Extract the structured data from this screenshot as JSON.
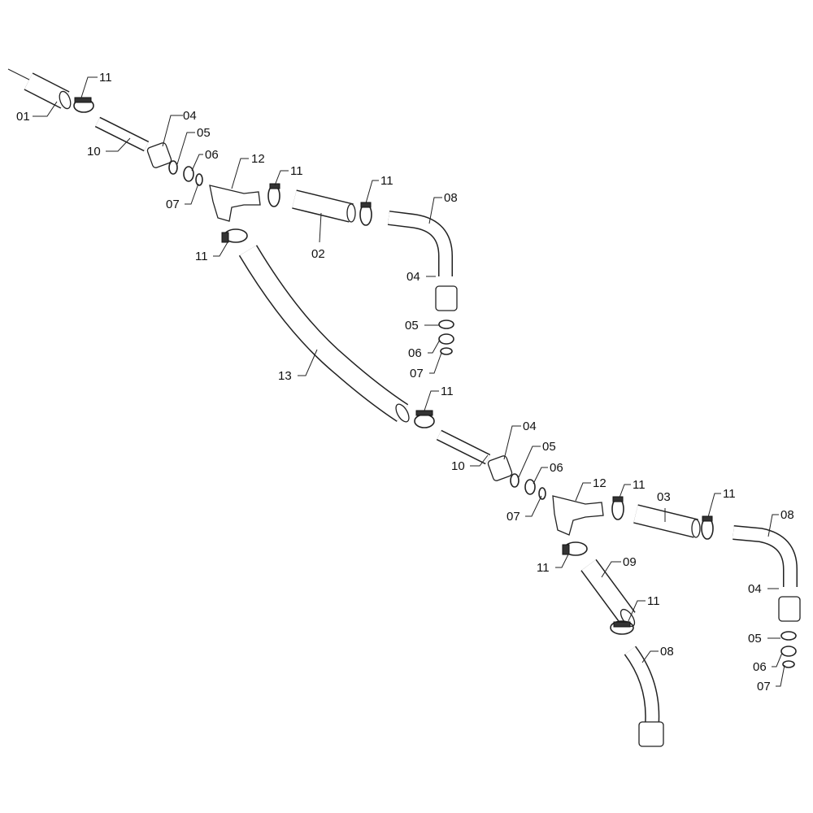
{
  "diagram": {
    "type": "exploded parts diagram",
    "part_labels": [
      "11",
      "01",
      "04",
      "10",
      "05",
      "06",
      "12",
      "11",
      "11",
      "08",
      "07",
      "11",
      "02",
      "04",
      "05",
      "06",
      "07",
      "13",
      "11",
      "04",
      "05",
      "10",
      "06",
      "12",
      "11",
      "11",
      "03",
      "07",
      "08",
      "11",
      "09",
      "11",
      "04",
      "05",
      "08",
      "06",
      "07"
    ]
  }
}
